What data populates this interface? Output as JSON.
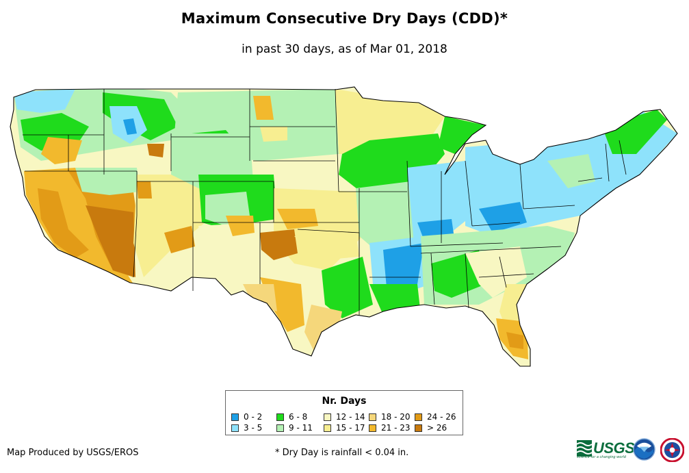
{
  "title": "Maximum Consecutive Dry Days (CDD)*",
  "subtitle": "in past 30 days, as of Mar 01, 2018",
  "legend": {
    "title": "Nr. Days",
    "items": [
      {
        "label": "0 - 2",
        "color": "#1ea0e6"
      },
      {
        "label": "3 - 5",
        "color": "#8ee2fb"
      },
      {
        "label": "6 - 8",
        "color": "#1fdb1c"
      },
      {
        "label": "9 - 11",
        "color": "#b4f1b4"
      },
      {
        "label": "12 - 14",
        "color": "#f8f7c2"
      },
      {
        "label": "15 - 17",
        "color": "#f7ee91"
      },
      {
        "label": "18 - 20",
        "color": "#f5d77b"
      },
      {
        "label": "21 - 23",
        "color": "#f2b92d"
      },
      {
        "label": "24 - 26",
        "color": "#e29b17"
      },
      {
        "label": "> 26",
        "color": "#c87a0e"
      }
    ]
  },
  "credit": "Map Produced by USGS/EROS",
  "footnote": "* Dry Day is rainfall < 0.04 in.",
  "logos": {
    "usgs": "USGS",
    "usgs_tagline": "science for a changing world"
  },
  "icons": [
    "usgs-logo-icon",
    "noaa-logo-icon",
    "nws-logo-icon"
  ]
}
